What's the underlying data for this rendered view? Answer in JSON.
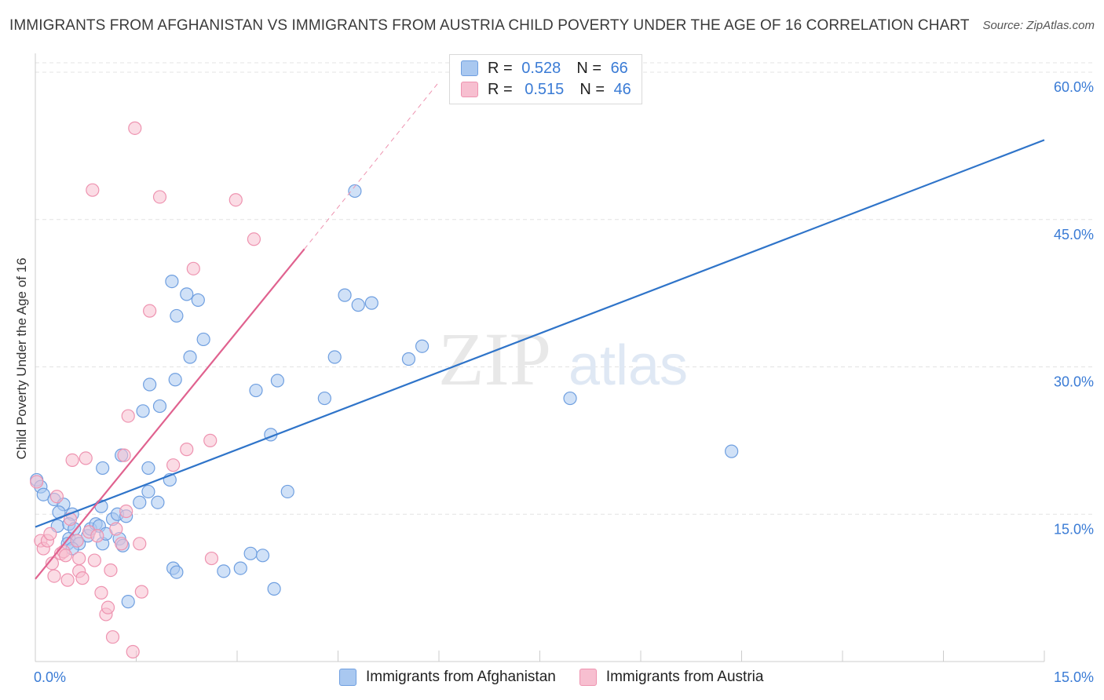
{
  "title": "IMMIGRANTS FROM AFGHANISTAN VS IMMIGRANTS FROM AUSTRIA CHILD POVERTY UNDER THE AGE OF 16 CORRELATION CHART",
  "source": "Source: ZipAtlas.com",
  "watermark": {
    "zip": "ZIP",
    "atlas": "atlas"
  },
  "legend": {
    "afghanistan": {
      "r_label": "R =",
      "r_value": "0.528",
      "n_label": "N =",
      "n_value": "66"
    },
    "austria": {
      "r_label": "R =",
      "r_value": "0.515",
      "n_label": "N =",
      "n_value": "46"
    }
  },
  "colors": {
    "afghanistan_fill": "#a9c8f0",
    "afghanistan_stroke": "#6f9fe0",
    "afghanistan_line": "#2f74c9",
    "austria_fill": "#f7bfd0",
    "austria_stroke": "#ee93b0",
    "austria_line": "#e0628f",
    "tick_label": "#3a7bd5",
    "grid": "#e3e3e3"
  },
  "chart_data": {
    "type": "scatter",
    "title": "IMMIGRANTS FROM AFGHANISTAN VS IMMIGRANTS FROM AUSTRIA CHILD POVERTY UNDER THE AGE OF 16 CORRELATION CHART",
    "xlabel": "",
    "ylabel": "Child Poverty Under the Age of 16",
    "xlim": [
      0,
      15
    ],
    "ylim": [
      0,
      60
    ],
    "x_tick_labels": [
      "0.0%",
      "15.0%"
    ],
    "y_ticks": [
      15,
      30,
      45,
      60
    ],
    "y_tick_labels": [
      "15.0%",
      "30.0%",
      "45.0%",
      "60.0%"
    ],
    "grid": true,
    "legend_position": "top-center",
    "series": [
      {
        "name": "Immigrants from Afghanistan",
        "points": [
          [
            0.02,
            18.5
          ],
          [
            0.08,
            17.8
          ],
          [
            0.12,
            17.0
          ],
          [
            0.28,
            16.5
          ],
          [
            0.42,
            16.0
          ],
          [
            0.35,
            15.2
          ],
          [
            0.33,
            13.8
          ],
          [
            0.55,
            15.0
          ],
          [
            0.5,
            14.0
          ],
          [
            0.58,
            13.5
          ],
          [
            0.5,
            12.5
          ],
          [
            0.62,
            12.3
          ],
          [
            0.48,
            12.0
          ],
          [
            0.65,
            12.0
          ],
          [
            0.55,
            11.5
          ],
          [
            0.78,
            12.8
          ],
          [
            0.82,
            13.5
          ],
          [
            0.9,
            14.0
          ],
          [
            0.95,
            13.8
          ],
          [
            0.98,
            15.8
          ],
          [
            1.0,
            12.0
          ],
          [
            1.05,
            13.0
          ],
          [
            1.15,
            14.5
          ],
          [
            1.22,
            15.0
          ],
          [
            1.25,
            12.5
          ],
          [
            1.35,
            14.8
          ],
          [
            1.3,
            11.8
          ],
          [
            1.55,
            16.2
          ],
          [
            1.68,
            17.3
          ],
          [
            1.82,
            16.2
          ],
          [
            1.68,
            19.7
          ],
          [
            1.0,
            19.7
          ],
          [
            1.28,
            21.0
          ],
          [
            1.6,
            25.5
          ],
          [
            1.7,
            28.2
          ],
          [
            1.85,
            26.0
          ],
          [
            2.0,
            18.5
          ],
          [
            2.08,
            28.7
          ],
          [
            2.1,
            35.2
          ],
          [
            2.03,
            38.7
          ],
          [
            2.25,
            37.4
          ],
          [
            2.3,
            31.0
          ],
          [
            2.42,
            36.8
          ],
          [
            2.5,
            32.8
          ],
          [
            2.8,
            9.2
          ],
          [
            2.05,
            9.5
          ],
          [
            2.1,
            9.1
          ],
          [
            3.2,
            11.0
          ],
          [
            3.38,
            10.8
          ],
          [
            3.55,
            7.4
          ],
          [
            3.05,
            9.5
          ],
          [
            3.28,
            27.6
          ],
          [
            3.6,
            28.6
          ],
          [
            3.75,
            17.3
          ],
          [
            3.5,
            23.1
          ],
          [
            4.3,
            26.8
          ],
          [
            4.45,
            31.0
          ],
          [
            4.6,
            37.3
          ],
          [
            4.75,
            47.9
          ],
          [
            4.8,
            36.3
          ],
          [
            5.0,
            36.5
          ],
          [
            5.55,
            30.8
          ],
          [
            5.75,
            32.1
          ],
          [
            7.95,
            26.8
          ],
          [
            10.35,
            21.4
          ],
          [
            1.38,
            6.1
          ]
        ]
      },
      {
        "name": "Immigrants from Austria",
        "points": [
          [
            0.02,
            18.3
          ],
          [
            0.08,
            12.3
          ],
          [
            0.12,
            11.5
          ],
          [
            0.18,
            12.3
          ],
          [
            0.22,
            13.0
          ],
          [
            0.25,
            10.0
          ],
          [
            0.28,
            8.7
          ],
          [
            0.32,
            16.8
          ],
          [
            0.38,
            11.0
          ],
          [
            0.42,
            11.2
          ],
          [
            0.45,
            10.8
          ],
          [
            0.48,
            8.3
          ],
          [
            0.52,
            14.5
          ],
          [
            0.55,
            20.5
          ],
          [
            0.62,
            12.3
          ],
          [
            0.65,
            9.2
          ],
          [
            0.7,
            8.5
          ],
          [
            0.75,
            20.7
          ],
          [
            0.8,
            13.2
          ],
          [
            0.88,
            10.3
          ],
          [
            0.92,
            12.8
          ],
          [
            0.98,
            7.0
          ],
          [
            1.05,
            4.8
          ],
          [
            1.08,
            5.5
          ],
          [
            1.12,
            9.3
          ],
          [
            1.15,
            2.5
          ],
          [
            1.2,
            13.5
          ],
          [
            1.28,
            12.0
          ],
          [
            1.32,
            21.0
          ],
          [
            1.35,
            15.3
          ],
          [
            1.38,
            25.0
          ],
          [
            1.45,
            1.0
          ],
          [
            1.48,
            54.3
          ],
          [
            1.55,
            12.0
          ],
          [
            1.58,
            7.1
          ],
          [
            1.7,
            35.7
          ],
          [
            0.85,
            48.0
          ],
          [
            1.85,
            47.3
          ],
          [
            2.05,
            20.0
          ],
          [
            2.25,
            21.6
          ],
          [
            2.35,
            40.0
          ],
          [
            2.6,
            22.5
          ],
          [
            2.62,
            10.5
          ],
          [
            2.98,
            47.0
          ],
          [
            3.25,
            43.0
          ],
          [
            0.65,
            10.5
          ]
        ]
      }
    ],
    "trendlines": [
      {
        "series": "Immigrants from Afghanistan",
        "x": [
          0.0,
          15.0
        ],
        "y": [
          13.7,
          53.1
        ]
      },
      {
        "series": "Austria",
        "x": [
          0.0,
          4.0
        ],
        "y": [
          8.4,
          42.0
        ],
        "dashed_extension": {
          "x": [
            4.0,
            6.0
          ],
          "y": [
            42.0,
            59.0
          ]
        }
      }
    ]
  }
}
